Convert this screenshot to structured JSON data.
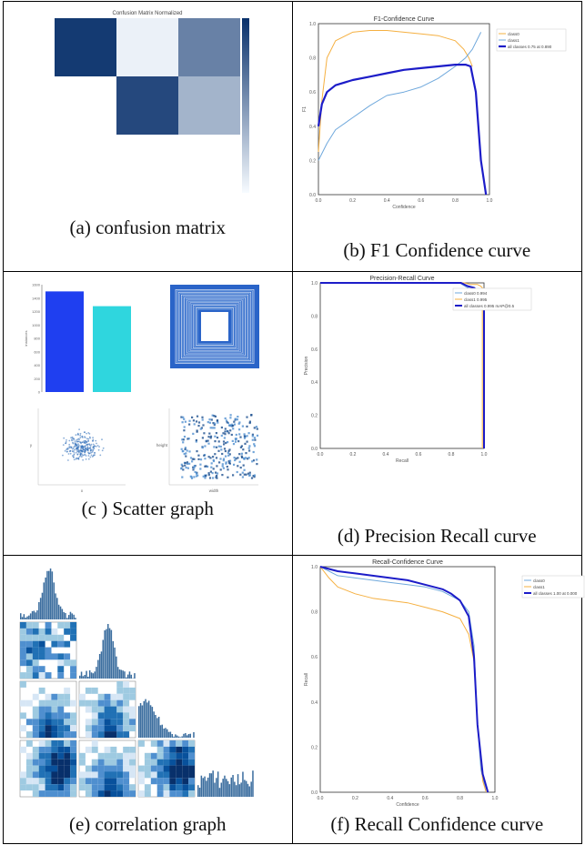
{
  "captions": {
    "a": "(a) confusion matrix",
    "b": "(b) F1 Confidence curve",
    "c": "(c ) Scatter graph",
    "d": "(d) Precision Recall curve",
    "e": "(e) correlation graph",
    "f": "(f) Recall Confidence curve"
  },
  "colors": {
    "dark_blue": "#08306b",
    "mid_blue": "#2171b5",
    "light_blue": "#9ecae1",
    "navy_line": "#1c1cc8",
    "orange": "#f5b041",
    "sky": "#6fa8dc",
    "cyan": "#2fd6de",
    "bright_blue": "#1f3ff0"
  },
  "chart_data": [
    {
      "id": "confusion_matrix",
      "type": "heatmap",
      "title": "Confusion Matrix Normalized",
      "cells": [
        [
          0.95,
          0.05,
          0.6
        ],
        [
          0.0,
          0.88,
          0.35
        ],
        [
          0.0,
          0.0,
          0.0
        ]
      ]
    },
    {
      "id": "f1_confidence",
      "type": "line",
      "title": "F1-Confidence Curve",
      "xlabel": "Confidence",
      "ylabel": "F1",
      "xlim": [
        0,
        1
      ],
      "ylim": [
        0,
        1
      ],
      "x_ticks": [
        "0.0",
        "0.2",
        "0.4",
        "0.6",
        "0.8",
        "1.0"
      ],
      "y_ticks": [
        "0.0",
        "0.2",
        "0.4",
        "0.6",
        "0.8",
        "1.0"
      ],
      "series": [
        {
          "name": "class0",
          "x": [
            0,
            0.02,
            0.05,
            0.1,
            0.2,
            0.3,
            0.4,
            0.5,
            0.6,
            0.7,
            0.8,
            0.85,
            0.88,
            0.9
          ],
          "y": [
            0.25,
            0.55,
            0.8,
            0.9,
            0.95,
            0.96,
            0.96,
            0.95,
            0.94,
            0.93,
            0.9,
            0.85,
            0.8,
            0.75
          ]
        },
        {
          "name": "class1",
          "x": [
            0,
            0.05,
            0.1,
            0.2,
            0.3,
            0.4,
            0.5,
            0.6,
            0.7,
            0.8,
            0.86,
            0.9,
            0.95
          ],
          "y": [
            0.2,
            0.3,
            0.38,
            0.45,
            0.52,
            0.58,
            0.6,
            0.63,
            0.68,
            0.75,
            0.8,
            0.85,
            0.95
          ]
        },
        {
          "name": "all classes 0.75 at 0.890",
          "x": [
            0,
            0.02,
            0.05,
            0.1,
            0.2,
            0.3,
            0.4,
            0.5,
            0.6,
            0.7,
            0.8,
            0.86,
            0.89,
            0.92,
            0.95,
            0.98
          ],
          "y": [
            0.4,
            0.53,
            0.6,
            0.64,
            0.67,
            0.69,
            0.71,
            0.73,
            0.74,
            0.75,
            0.76,
            0.76,
            0.75,
            0.6,
            0.2,
            0.0
          ]
        }
      ]
    },
    {
      "id": "label_counts",
      "type": "bar",
      "ylabel": "instances",
      "y_ticks": [
        "0",
        "200",
        "400",
        "600",
        "800",
        "1000",
        "1200",
        "1400",
        "1600"
      ],
      "ylim": [
        0,
        1600
      ],
      "values": [
        1500,
        1280
      ],
      "colors": [
        "#1f3ff0",
        "#2fd6de"
      ]
    },
    {
      "id": "scatter_xy",
      "type": "scatter",
      "xlabel": "x",
      "ylabel": "y"
    },
    {
      "id": "scatter_wh",
      "type": "scatter",
      "xlabel": "width",
      "ylabel": "height"
    },
    {
      "id": "precision_recall",
      "type": "line",
      "title": "Precision-Recall Curve",
      "xlabel": "Recall",
      "ylabel": "Precision",
      "xlim": [
        0,
        1
      ],
      "ylim": [
        0,
        1
      ],
      "x_ticks": [
        "0.0",
        "0.2",
        "0.4",
        "0.6",
        "0.8",
        "1.0"
      ],
      "y_ticks": [
        "0.0",
        "0.2",
        "0.4",
        "0.6",
        "0.8",
        "1.0"
      ],
      "series": [
        {
          "name": "class0 0.994",
          "x": [
            0,
            0.85,
            0.9,
            0.95,
            0.98,
            1.0,
            1.0
          ],
          "y": [
            1.0,
            1.0,
            0.97,
            0.95,
            0.93,
            0.92,
            0.0
          ]
        },
        {
          "name": "class1 0.995",
          "x": [
            0,
            0.88,
            0.92,
            0.96,
            0.98,
            0.99,
            0.99
          ],
          "y": [
            1.0,
            1.0,
            0.99,
            0.99,
            0.98,
            0.97,
            0.0
          ]
        },
        {
          "name": "all classes 0.995 mAP@0.5",
          "x": [
            0,
            0.86,
            0.9,
            0.94,
            0.96,
            0.98,
            1.0,
            1.0
          ],
          "y": [
            1.0,
            1.0,
            0.98,
            0.97,
            0.95,
            0.94,
            0.93,
            0.0
          ]
        }
      ]
    },
    {
      "id": "recall_confidence",
      "type": "line",
      "title": "Recall-Confidence Curve",
      "xlabel": "Confidence",
      "ylabel": "Recall",
      "xlim": [
        0,
        1
      ],
      "ylim": [
        0,
        1
      ],
      "x_ticks": [
        "0.0",
        "0.2",
        "0.4",
        "0.6",
        "0.8",
        "1.0"
      ],
      "y_ticks": [
        "0.0",
        "0.2",
        "0.4",
        "0.6",
        "0.8",
        "1.0"
      ],
      "series": [
        {
          "name": "class0",
          "x": [
            0,
            0.1,
            0.2,
            0.3,
            0.4,
            0.5,
            0.6,
            0.7,
            0.8,
            0.85,
            0.88,
            0.9,
            0.92,
            0.95
          ],
          "y": [
            1.0,
            0.96,
            0.95,
            0.94,
            0.93,
            0.92,
            0.91,
            0.89,
            0.85,
            0.8,
            0.65,
            0.3,
            0.1,
            0.0
          ]
        },
        {
          "name": "class1",
          "x": [
            0,
            0.05,
            0.1,
            0.2,
            0.3,
            0.4,
            0.5,
            0.6,
            0.7,
            0.8,
            0.85,
            0.88,
            0.9,
            0.93,
            0.95
          ],
          "y": [
            1.0,
            0.95,
            0.91,
            0.88,
            0.86,
            0.85,
            0.84,
            0.82,
            0.8,
            0.77,
            0.7,
            0.58,
            0.3,
            0.05,
            0.0
          ]
        },
        {
          "name": "all classes 1.00 at 0.000",
          "x": [
            0,
            0.1,
            0.2,
            0.3,
            0.4,
            0.5,
            0.6,
            0.7,
            0.75,
            0.8,
            0.85,
            0.88,
            0.9,
            0.93,
            0.96
          ],
          "y": [
            1.0,
            0.98,
            0.97,
            0.96,
            0.95,
            0.94,
            0.92,
            0.9,
            0.88,
            0.85,
            0.78,
            0.6,
            0.3,
            0.08,
            0.0
          ]
        }
      ]
    }
  ]
}
